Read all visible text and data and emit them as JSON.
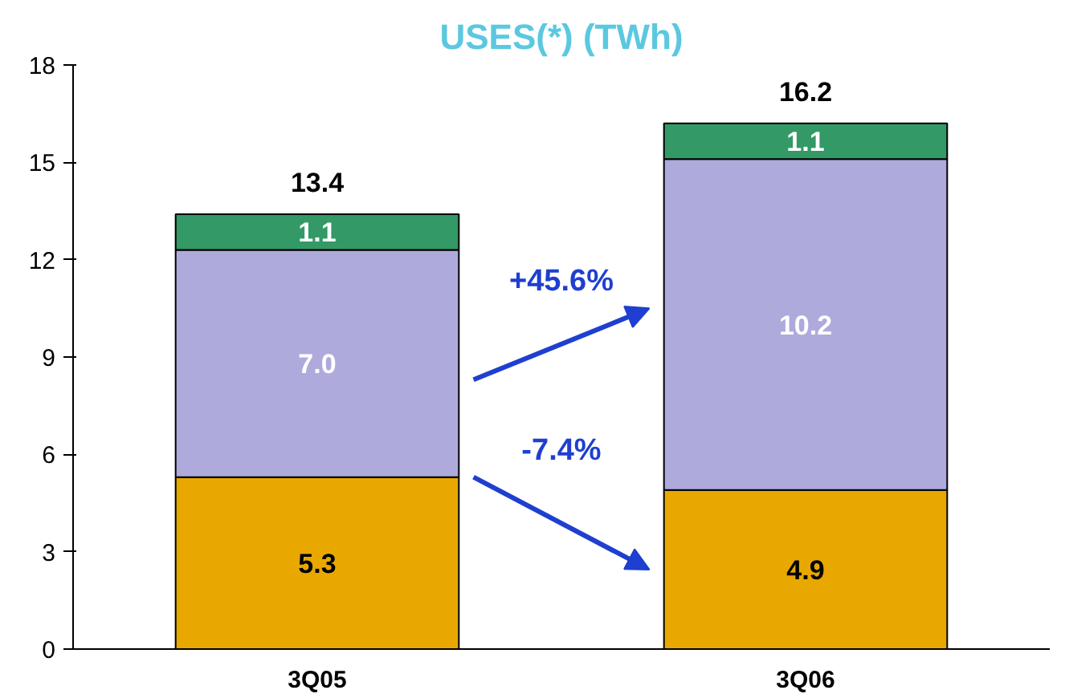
{
  "chart_data": {
    "type": "bar",
    "stacked": true,
    "title": "USES(*) (TWh)",
    "categories": [
      "3Q05",
      "3Q06"
    ],
    "series": [
      {
        "color": "#e8a800",
        "values": [
          5.3,
          4.9
        ],
        "value_labels": [
          "5.3",
          "4.9"
        ]
      },
      {
        "color": "#aeaadc",
        "values": [
          7.0,
          10.2
        ],
        "value_labels": [
          "7.0",
          "10.2"
        ]
      },
      {
        "color": "#339966",
        "values": [
          1.1,
          1.1
        ],
        "value_labels": [
          "1.1",
          "1.1"
        ]
      }
    ],
    "totals": [
      "13.4",
      "16.2"
    ],
    "annotations": [
      "+45.6%",
      "-7.4%"
    ],
    "ylim": [
      0,
      18
    ],
    "yticks": [
      0,
      3,
      6,
      9,
      12,
      15,
      18
    ],
    "grid": false
  }
}
